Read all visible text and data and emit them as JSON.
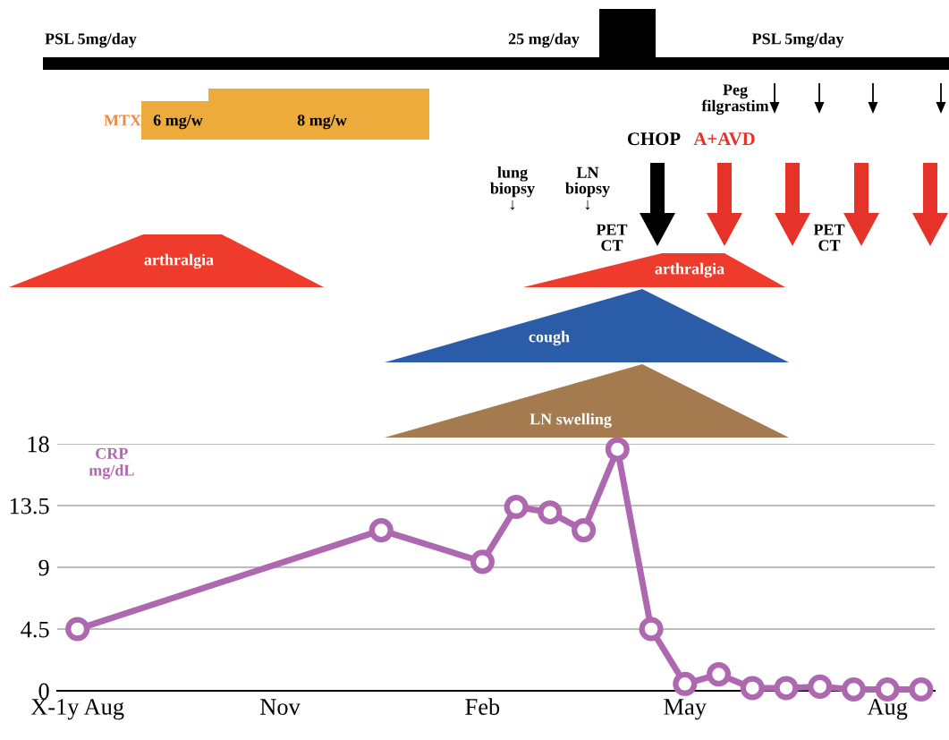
{
  "chart_data": {
    "type": "line",
    "ylabel": "CRP\nmg/dL",
    "categories": [
      "X-1y Aug",
      null,
      null,
      null,
      null,
      null,
      "Nov",
      null,
      null,
      null,
      null,
      null,
      "Feb",
      null,
      null,
      null,
      null,
      null,
      "May",
      null,
      null,
      null,
      null,
      null,
      "Aug",
      null
    ],
    "series": [
      {
        "color": "#ae68b0",
        "values": [
          4.5,
          null,
          null,
          null,
          null,
          null,
          null,
          null,
          null,
          11.7,
          null,
          null,
          9.4,
          13.4,
          13.0,
          11.7,
          17.6,
          4.5,
          0.5,
          1.2,
          0.2,
          0.2,
          0.3,
          0.1,
          0.1,
          0.1
        ]
      }
    ],
    "ylim": [
      0,
      18
    ],
    "yticks": [
      0,
      4.5,
      9,
      13.5,
      18
    ],
    "grid": "y",
    "marker": "circle",
    "line_style": "solid",
    "annotations": [
      "PSL 5mg/day",
      "25 mg/day",
      "PSL 5mg/day",
      "MTX",
      "6 mg/w",
      "8 mg/w",
      "Peg\nfilgrastim",
      "CHOP",
      "A+AVD",
      "lung\nbiopsy\n↓",
      "LN\nbiopsy\n↓",
      "PET\nCT",
      "PET\nCT",
      "arthralgia",
      "arthralgia",
      "cough",
      "LN swelling"
    ]
  }
}
